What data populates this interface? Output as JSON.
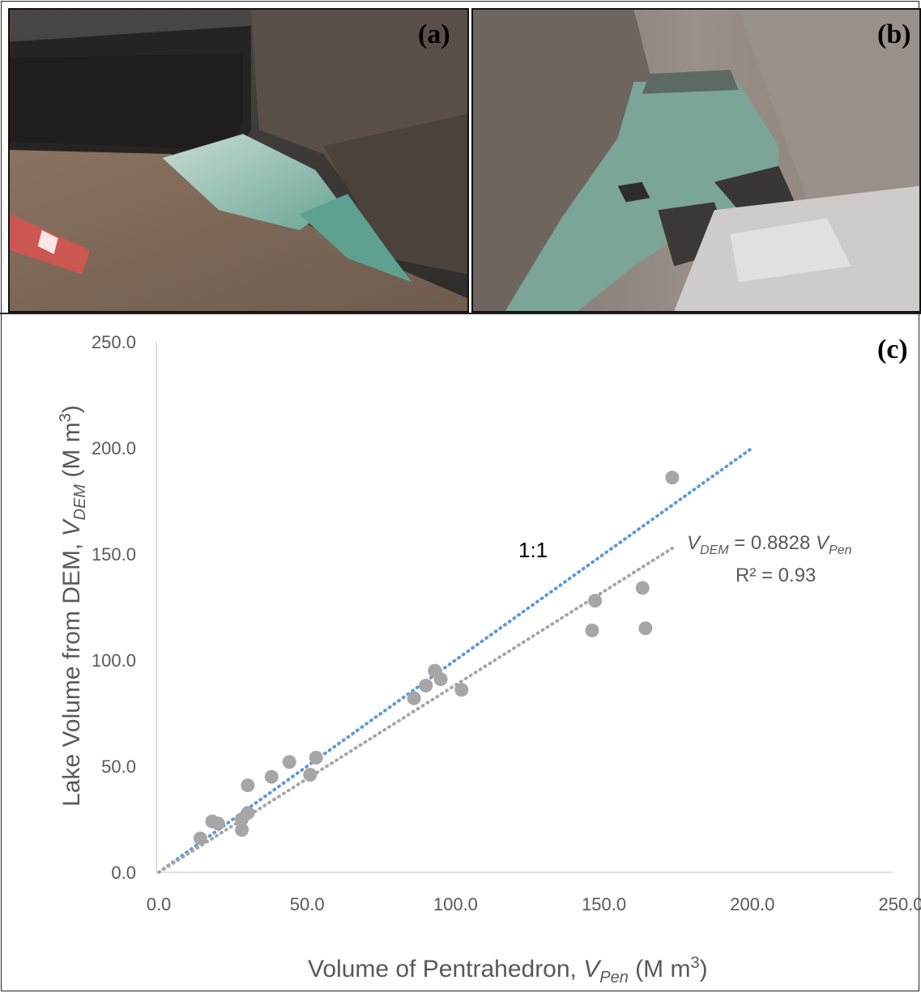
{
  "panels": {
    "a": {
      "label": "(a)",
      "image": "aerial photo of glacial lake below dark debris-covered glacier"
    },
    "b": {
      "label": "(b)",
      "image": "aerial photo of glacial lake in rocky valley with floating debris"
    },
    "c": {
      "label": "(c)"
    }
  },
  "chart_data": {
    "type": "scatter",
    "xlabel": {
      "prefix": "Volume of Pentrahedron, ",
      "var": "V",
      "sub": "Pen",
      "unit_open": " (M m",
      "sup": "3",
      "unit_close": ")"
    },
    "ylabel": {
      "prefix": "Lake Volume from DEM, ",
      "var": "V",
      "sub": "DEM",
      "unit_open": " (M m",
      "sup": "3",
      "unit_close": ")"
    },
    "xlim": [
      0,
      250
    ],
    "ylim": [
      0,
      250
    ],
    "xticks": [
      "0.0",
      "50.0",
      "100.0",
      "150.0",
      "200.0",
      "250.0"
    ],
    "yticks": [
      "0.0",
      "50.0",
      "100.0",
      "150.0",
      "200.0",
      "250.0"
    ],
    "grid": false,
    "points": [
      [
        14,
        16
      ],
      [
        18,
        24
      ],
      [
        20,
        23
      ],
      [
        28,
        25
      ],
      [
        28,
        20
      ],
      [
        30,
        28
      ],
      [
        30,
        41
      ],
      [
        38,
        45
      ],
      [
        44,
        52
      ],
      [
        51,
        46
      ],
      [
        53,
        54
      ],
      [
        86,
        82
      ],
      [
        90,
        88
      ],
      [
        93,
        95
      ],
      [
        95,
        91
      ],
      [
        102,
        86
      ],
      [
        146,
        114
      ],
      [
        147,
        128
      ],
      [
        163,
        134
      ],
      [
        164,
        115
      ],
      [
        173,
        186
      ]
    ],
    "point_color": "#a6a6a6",
    "lines": [
      {
        "name": "1:1",
        "x": [
          0,
          200
        ],
        "y": [
          0,
          200
        ],
        "color": "#5b9bd5",
        "style": "dotted"
      },
      {
        "name": "fit",
        "x": [
          0,
          173
        ],
        "y": [
          0,
          152.7
        ],
        "color": "#a6a6a6",
        "style": "dotted"
      }
    ],
    "annotations": {
      "one_to_one": "1:1",
      "equation": {
        "lhs_var": "V",
        "lhs_sub": "DEM",
        "mid": " = 0.8828 ",
        "rhs_var": "V",
        "rhs_sub": "Pen"
      },
      "r2": "R² = 0.93"
    }
  }
}
